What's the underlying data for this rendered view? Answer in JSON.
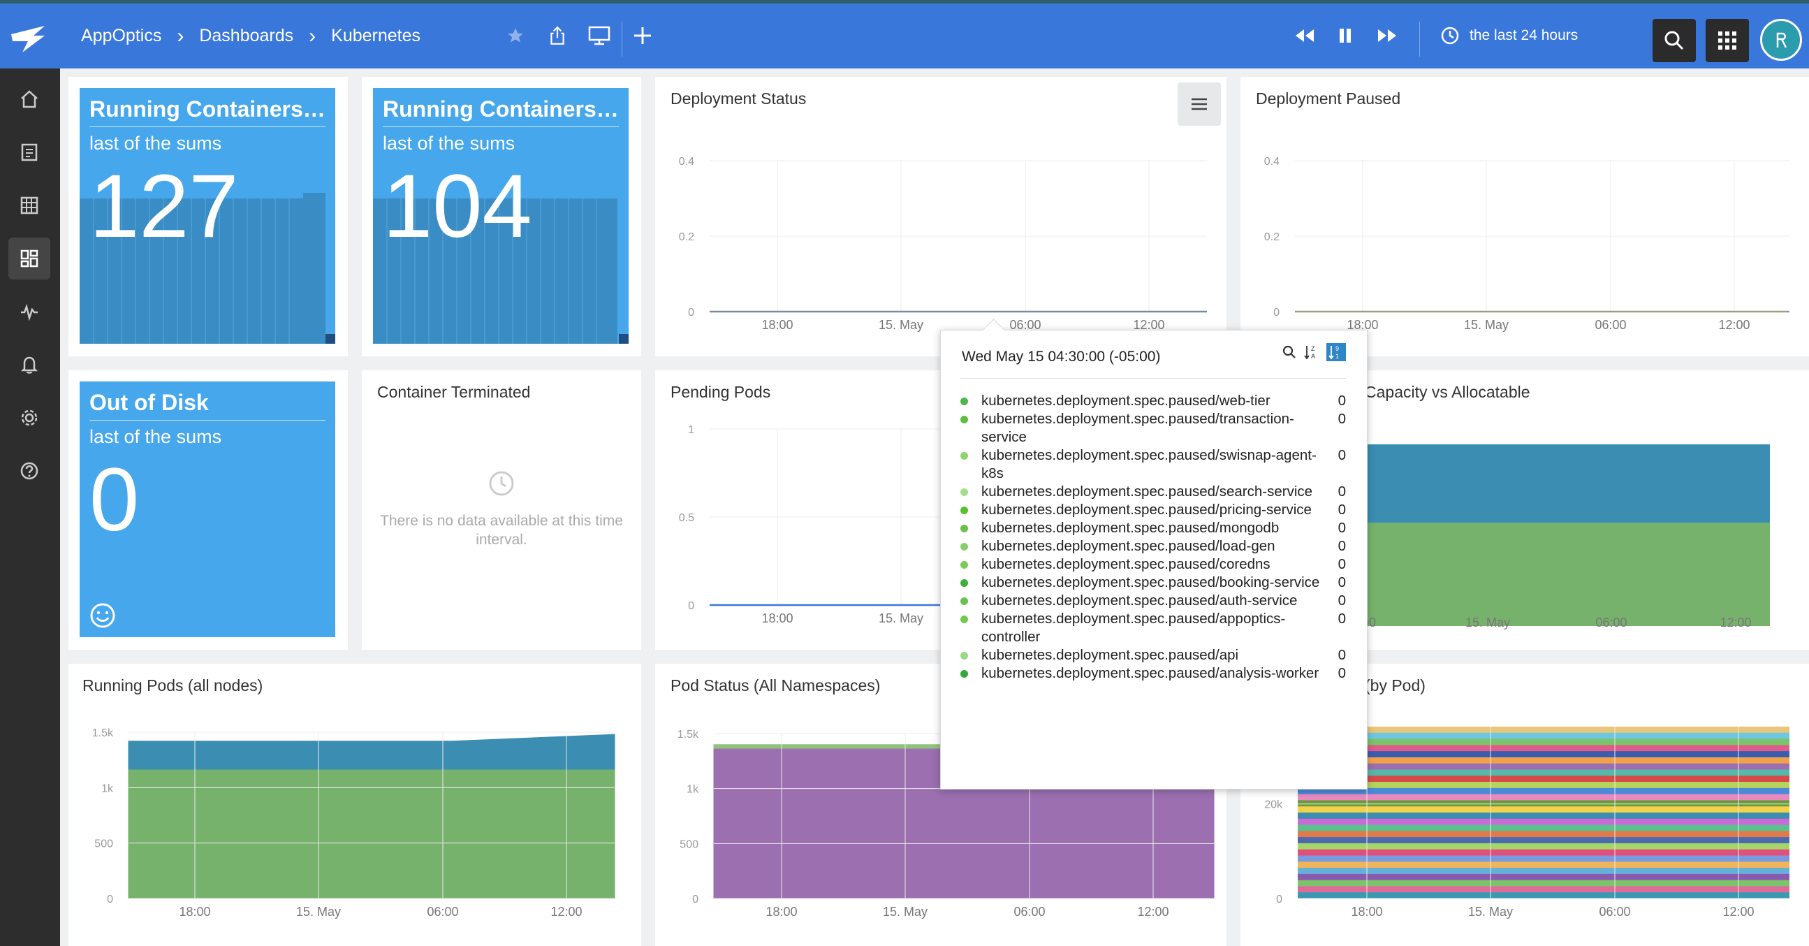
{
  "breadcrumb": [
    "AppOptics",
    "Dashboards",
    "Kubernetes"
  ],
  "time_range": "the last 24 hours",
  "colors": {
    "accent": "#3a77db",
    "stat_blue": "#46a7ec",
    "teal": "#3b8db2",
    "green": "#77b26c",
    "purple": "#9b6fb0"
  },
  "stats": [
    {
      "title": "Running Containers ...",
      "subtitle": "last of the sums",
      "value": "127"
    },
    {
      "title": "Running Containers ...",
      "subtitle": "last of the sums",
      "value": "104"
    },
    {
      "title": "Out of Disk",
      "subtitle": "last of the sums",
      "value": "0"
    }
  ],
  "panels": {
    "deployment_status": "Deployment Status",
    "deployment_paused": "Deployment Paused",
    "container_terminated": "Container Terminated",
    "no_data": "There is no data available at this time interval.",
    "pending_pods": "Pending Pods",
    "capacity": "Capacity vs Allocatable",
    "running_pods": "Running Pods (all nodes)",
    "pod_status": "Pod Status (All Namespaces)",
    "by_pod": "(by Pod)"
  },
  "x_ticks": [
    "18:00",
    "15. May",
    "06:00",
    "12:00"
  ],
  "tooltip": {
    "date": "Wed May 15 04:30:00 (-05:00)",
    "rows": [
      {
        "name": "kubernetes.deployment.spec.paused/web-tier",
        "value": "0",
        "color": "#4bb84b"
      },
      {
        "name": "kubernetes.deployment.spec.paused/transaction-service",
        "value": "0",
        "color": "#5bbf3f"
      },
      {
        "name": "kubernetes.deployment.spec.paused/swisnap-agent-k8s",
        "value": "0",
        "color": "#8ed46a"
      },
      {
        "name": "kubernetes.deployment.spec.paused/search-service",
        "value": "0",
        "color": "#a6dd8a"
      },
      {
        "name": "kubernetes.deployment.spec.paused/pricing-service",
        "value": "0",
        "color": "#55c22e"
      },
      {
        "name": "kubernetes.deployment.spec.paused/mongodb",
        "value": "0",
        "color": "#6cbf4a"
      },
      {
        "name": "kubernetes.deployment.spec.paused/load-gen",
        "value": "0",
        "color": "#86d06a"
      },
      {
        "name": "kubernetes.deployment.spec.paused/coredns",
        "value": "0",
        "color": "#7acb58"
      },
      {
        "name": "kubernetes.deployment.spec.paused/booking-service",
        "value": "0",
        "color": "#3fae3a"
      },
      {
        "name": "kubernetes.deployment.spec.paused/auth-service",
        "value": "0",
        "color": "#66c24e"
      },
      {
        "name": "kubernetes.deployment.spec.paused/appoptics-controller",
        "value": "0",
        "color": "#71c94f"
      },
      {
        "name": "kubernetes.deployment.spec.paused/api",
        "value": "0",
        "color": "#9ed78a"
      },
      {
        "name": "kubernetes.deployment.spec.paused/analysis-worker",
        "value": "0",
        "color": "#34a83a"
      }
    ]
  },
  "chart_data": [
    {
      "type": "line",
      "title": "Deployment Status",
      "x": [
        "18:00",
        "15. May",
        "06:00",
        "12:00"
      ],
      "ylim": [
        0,
        0.4
      ],
      "yticks": [
        "0",
        "0.2",
        "0.4"
      ],
      "series": [
        {
          "values": [
            0,
            0,
            0,
            0
          ]
        }
      ]
    },
    {
      "type": "line",
      "title": "Deployment Paused",
      "x": [
        "18:00",
        "15. May",
        "06:00",
        "12:00"
      ],
      "ylim": [
        0,
        0.4
      ],
      "yticks": [
        "0",
        "0.2",
        "0.4"
      ],
      "series": [
        {
          "values": [
            0,
            0,
            0,
            0
          ]
        }
      ]
    },
    {
      "type": "line",
      "title": "Pending Pods",
      "x": [
        "18:00",
        "15. May",
        "06:00",
        "12:00"
      ],
      "ylim": [
        0,
        1
      ],
      "yticks": [
        "0",
        "0.5",
        "1"
      ],
      "series": [
        {
          "values": [
            0,
            0,
            0,
            0
          ]
        }
      ]
    },
    {
      "type": "area",
      "title": "Running Pods (all nodes)",
      "x": [
        "18:00",
        "15. May",
        "06:00",
        "12:00"
      ],
      "ylim": [
        0,
        1500
      ],
      "yticks": [
        "0",
        "500",
        "1k",
        "1.5k"
      ],
      "series": [
        {
          "values": [
            1160,
            1160,
            1160,
            1160
          ]
        },
        {
          "values": [
            1420,
            1420,
            1420,
            1480
          ]
        }
      ]
    },
    {
      "type": "area",
      "title": "Pod Status (All Namespaces)",
      "x": [
        "18:00",
        "15. May",
        "06:00",
        "12:00"
      ],
      "ylim": [
        0,
        1500
      ],
      "yticks": [
        "0",
        "500",
        "1k",
        "1.5k"
      ],
      "series": [
        {
          "values": [
            1360,
            1360,
            1360,
            1360
          ]
        },
        {
          "values": [
            1400,
            1400,
            1400,
            1400
          ]
        }
      ]
    },
    {
      "type": "area",
      "title": "(by Pod)",
      "x": [
        "18:00",
        "15. May",
        "06:00",
        "12:00"
      ],
      "yticks": [
        "0",
        "20k"
      ]
    }
  ]
}
